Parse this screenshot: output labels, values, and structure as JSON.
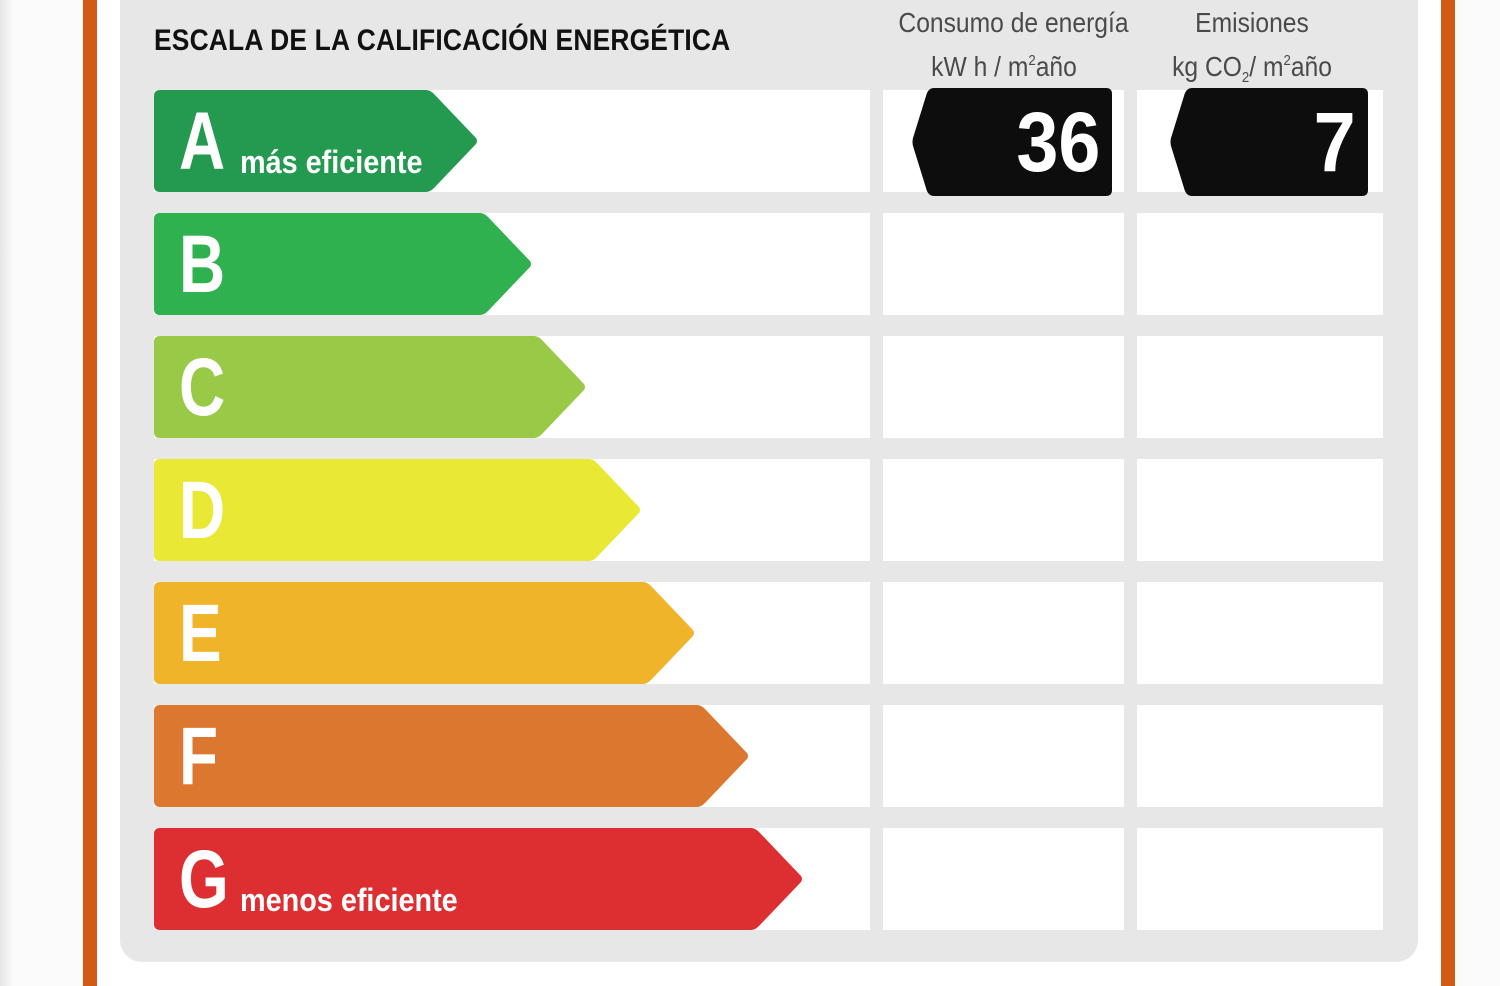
{
  "title": "ESCALA DE LA CALIFICACIÓN ENERGÉTICA",
  "columns": {
    "energy": {
      "line1": "Consumo de energía",
      "unit_prefix": "kW h / m",
      "unit_sup": "2",
      "unit_suffix": "año"
    },
    "emissions": {
      "line1": "Emisiones",
      "unit_prefix": "kg CO",
      "unit_sub": "2",
      "unit_mid": "/ m",
      "unit_sup": "2",
      "unit_suffix": "año"
    }
  },
  "ratings": [
    {
      "letter": "A",
      "label": "más eficiente",
      "color": "#239a4f"
    },
    {
      "letter": "B",
      "label": "",
      "color": "#2fb14f"
    },
    {
      "letter": "C",
      "label": "",
      "color": "#98c947"
    },
    {
      "letter": "D",
      "label": "",
      "color": "#e9e834"
    },
    {
      "letter": "E",
      "label": "",
      "color": "#efb42a"
    },
    {
      "letter": "F",
      "label": "",
      "color": "#dc7730"
    },
    {
      "letter": "G",
      "label": "menos eficiente",
      "color": "#dd2e32"
    }
  ],
  "current": {
    "rating": "A",
    "energy_value": "36",
    "emissions_value": "7",
    "tag_color": "#0d0d0d"
  },
  "colors": {
    "frame": "#d35a14",
    "panel": "#e7e7e7"
  }
}
